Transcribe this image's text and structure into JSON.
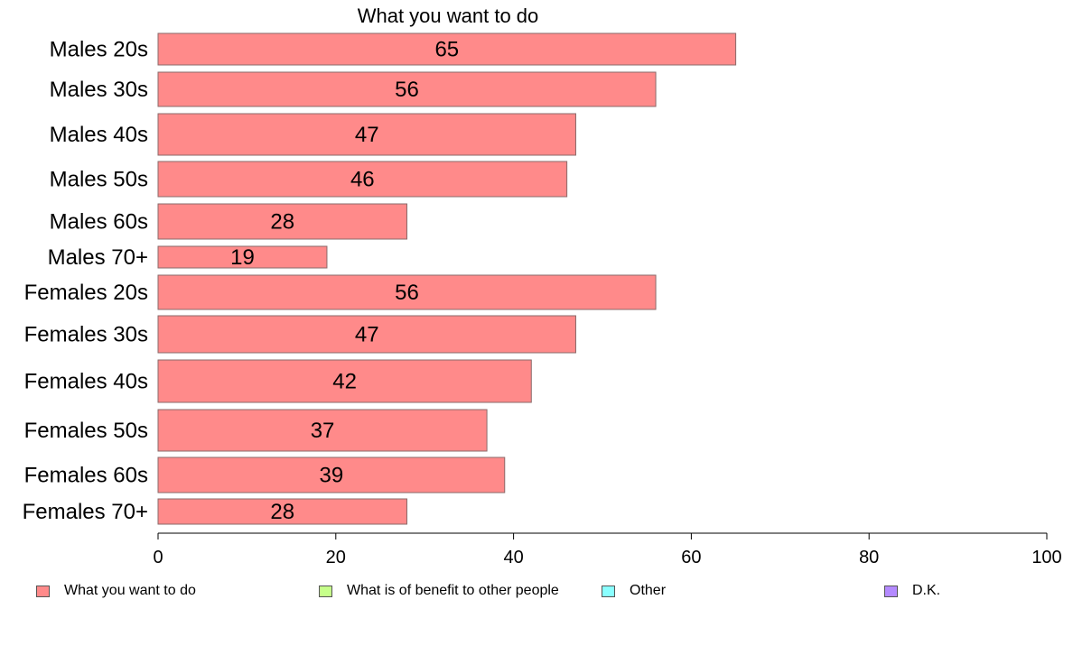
{
  "chart_data": {
    "type": "bar",
    "orientation": "horizontal",
    "title": "What you want to do",
    "categories": [
      "Males 20s",
      "Males 30s",
      "Males 40s",
      "Males 50s",
      "Males 60s",
      "Males 70+",
      "Females 20s",
      "Females 30s",
      "Females 40s",
      "Females 50s",
      "Females 60s",
      "Females 70+"
    ],
    "series": [
      {
        "name": "What you want to do",
        "color": "#ff8a8a",
        "values": [
          65,
          56,
          47,
          46,
          28,
          19,
          56,
          47,
          42,
          37,
          39,
          28
        ]
      }
    ],
    "xlim": [
      0,
      100
    ],
    "xticks": [
      0,
      20,
      40,
      60,
      80,
      100
    ],
    "grid": false,
    "legend_position": "bottom",
    "legend": [
      {
        "label": "What you want to do",
        "color": "#ff8a8a"
      },
      {
        "label": "What is of benefit to other people",
        "color": "#c6ff8a"
      },
      {
        "label": "Other",
        "color": "#8affff"
      },
      {
        "label": "D.K.",
        "color": "#b48aff"
      }
    ]
  }
}
